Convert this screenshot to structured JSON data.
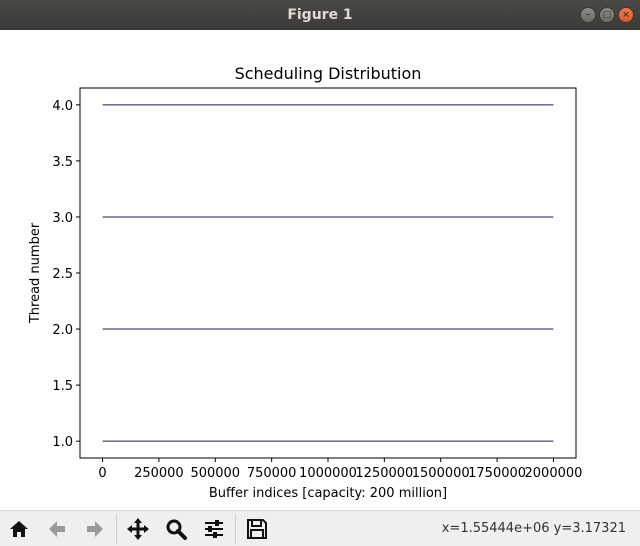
{
  "window": {
    "title": "Figure 1",
    "buttons": [
      "minimize",
      "maximize",
      "close"
    ]
  },
  "toolbar": {
    "buttons": [
      {
        "name": "home-icon",
        "tooltip": "Reset original view"
      },
      {
        "name": "back-icon",
        "tooltip": "Back to previous view"
      },
      {
        "name": "forward-icon",
        "tooltip": "Forward to next view"
      },
      {
        "name": "pan-icon",
        "tooltip": "Pan axes"
      },
      {
        "name": "zoom-icon",
        "tooltip": "Zoom to rectangle"
      },
      {
        "name": "configure-subplots-icon",
        "tooltip": "Configure subplots"
      },
      {
        "name": "save-icon",
        "tooltip": "Save the figure"
      }
    ],
    "coords": "x=1.55444e+06  y=3.17321"
  },
  "chart_data": {
    "type": "line",
    "title": "Scheduling Distribution",
    "xlabel": "Buffer indices [capacity: 200 million]",
    "ylabel": "Thread number",
    "xlim": [
      -100000,
      2100000
    ],
    "ylim": [
      0.85,
      4.15
    ],
    "x_ticks": [
      0,
      250000,
      500000,
      750000,
      1000000,
      1250000,
      1500000,
      1750000,
      2000000
    ],
    "x_tick_labels": [
      "0",
      "250000",
      "500000",
      "750000",
      "1000000",
      "1250000",
      "1500000",
      "1750000",
      "2000000"
    ],
    "y_ticks": [
      1.0,
      1.5,
      2.0,
      2.5,
      3.0,
      3.5,
      4.0
    ],
    "y_tick_labels": [
      "1.0",
      "1.5",
      "2.0",
      "2.5",
      "3.0",
      "3.5",
      "4.0"
    ],
    "grid": false,
    "color": "#1a1a6e",
    "series": [
      {
        "x": [
          0,
          2000000
        ],
        "y": [
          1.0,
          1.0
        ]
      },
      {
        "x": [
          0,
          2000000
        ],
        "y": [
          2.0,
          2.0
        ]
      },
      {
        "x": [
          0,
          2000000
        ],
        "y": [
          3.0,
          3.0
        ]
      },
      {
        "x": [
          0,
          2000000
        ],
        "y": [
          4.0,
          4.0
        ]
      }
    ]
  }
}
